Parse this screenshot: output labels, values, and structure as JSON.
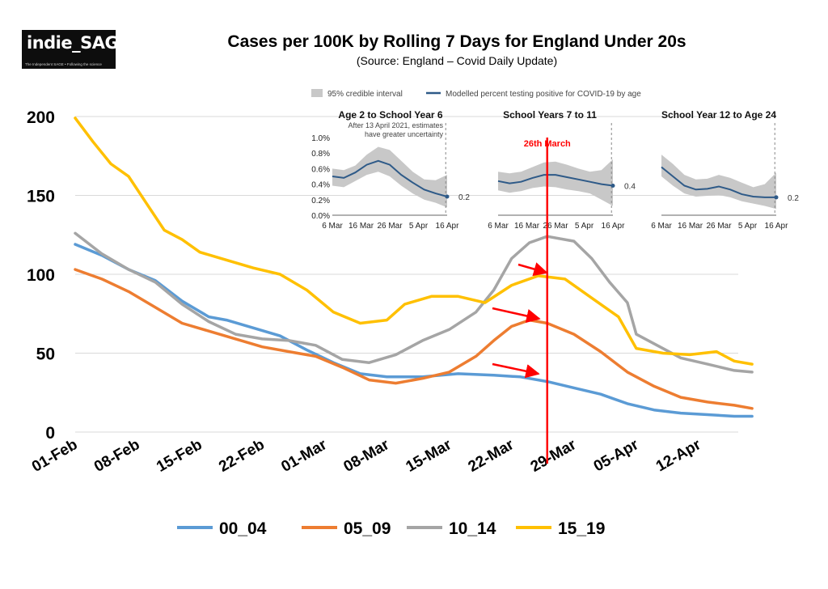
{
  "logo": {
    "text": "indie_SAGE",
    "tagline": "The Independent SAGE • Following the science"
  },
  "title": "Cases per 100K by Rolling 7 Days for England Under 20s",
  "subtitle": "(Source: England – Covid Daily Update)",
  "chart_data": [
    {
      "type": "line",
      "title": "Cases per 100K by Rolling 7 Days for England Under 20s",
      "xlabel": "",
      "ylabel": "",
      "x_tick_labels": [
        "01-Feb",
        "08-Feb",
        "15-Feb",
        "22-Feb",
        "01-Mar",
        "08-Mar",
        "15-Mar",
        "22-Mar",
        "29-Mar",
        "05-Apr",
        "12-Apr"
      ],
      "y_ticks": [
        0,
        50,
        100,
        150,
        200
      ],
      "ylim": [
        0,
        200
      ],
      "xlim": [
        "2021-02-01",
        "2021-04-18"
      ],
      "grid": "horizontal",
      "legend_position": "bottom",
      "series": [
        {
          "name": "00_04",
          "color": "#5b9bd5",
          "points": [
            [
              "2021-02-01",
              119
            ],
            [
              "2021-02-04",
              112
            ],
            [
              "2021-02-07",
              103
            ],
            [
              "2021-02-10",
              96
            ],
            [
              "2021-02-13",
              83
            ],
            [
              "2021-02-16",
              73
            ],
            [
              "2021-02-18",
              71
            ],
            [
              "2021-02-21",
              66
            ],
            [
              "2021-02-24",
              61
            ],
            [
              "2021-02-27",
              52
            ],
            [
              "2021-03-02",
              44
            ],
            [
              "2021-03-05",
              37
            ],
            [
              "2021-03-08",
              35
            ],
            [
              "2021-03-12",
              35
            ],
            [
              "2021-03-16",
              37
            ],
            [
              "2021-03-20",
              36
            ],
            [
              "2021-03-23",
              35
            ],
            [
              "2021-03-26",
              32
            ],
            [
              "2021-03-29",
              28
            ],
            [
              "2021-04-01",
              24
            ],
            [
              "2021-04-04",
              18
            ],
            [
              "2021-04-07",
              14
            ],
            [
              "2021-04-10",
              12
            ],
            [
              "2021-04-13",
              11
            ],
            [
              "2021-04-16",
              10
            ],
            [
              "2021-04-18",
              10
            ]
          ]
        },
        {
          "name": "05_09",
          "color": "#ed7d31",
          "points": [
            [
              "2021-02-01",
              103
            ],
            [
              "2021-02-04",
              97
            ],
            [
              "2021-02-07",
              89
            ],
            [
              "2021-02-10",
              79
            ],
            [
              "2021-02-13",
              69
            ],
            [
              "2021-02-16",
              64
            ],
            [
              "2021-02-19",
              59
            ],
            [
              "2021-02-22",
              54
            ],
            [
              "2021-02-25",
              51
            ],
            [
              "2021-02-28",
              48
            ],
            [
              "2021-03-03",
              41
            ],
            [
              "2021-03-06",
              33
            ],
            [
              "2021-03-09",
              31
            ],
            [
              "2021-03-12",
              34
            ],
            [
              "2021-03-15",
              38
            ],
            [
              "2021-03-18",
              48
            ],
            [
              "2021-03-20",
              58
            ],
            [
              "2021-03-22",
              67
            ],
            [
              "2021-03-24",
              71
            ],
            [
              "2021-03-26",
              69
            ],
            [
              "2021-03-29",
              62
            ],
            [
              "2021-04-01",
              51
            ],
            [
              "2021-04-04",
              38
            ],
            [
              "2021-04-07",
              29
            ],
            [
              "2021-04-10",
              22
            ],
            [
              "2021-04-13",
              19
            ],
            [
              "2021-04-16",
              17
            ],
            [
              "2021-04-18",
              15
            ]
          ]
        },
        {
          "name": "10_14",
          "color": "#a5a5a5",
          "points": [
            [
              "2021-02-01",
              126
            ],
            [
              "2021-02-04",
              113
            ],
            [
              "2021-02-07",
              103
            ],
            [
              "2021-02-10",
              95
            ],
            [
              "2021-02-13",
              81
            ],
            [
              "2021-02-16",
              70
            ],
            [
              "2021-02-19",
              62
            ],
            [
              "2021-02-22",
              59
            ],
            [
              "2021-02-25",
              58
            ],
            [
              "2021-02-28",
              55
            ],
            [
              "2021-03-03",
              46
            ],
            [
              "2021-03-06",
              44
            ],
            [
              "2021-03-09",
              49
            ],
            [
              "2021-03-12",
              58
            ],
            [
              "2021-03-15",
              65
            ],
            [
              "2021-03-18",
              76
            ],
            [
              "2021-03-20",
              90
            ],
            [
              "2021-03-22",
              110
            ],
            [
              "2021-03-24",
              120
            ],
            [
              "2021-03-26",
              124
            ],
            [
              "2021-03-29",
              121
            ],
            [
              "2021-03-31",
              110
            ],
            [
              "2021-04-02",
              95
            ],
            [
              "2021-04-04",
              82
            ],
            [
              "2021-04-05",
              62
            ],
            [
              "2021-04-07",
              56
            ],
            [
              "2021-04-10",
              47
            ],
            [
              "2021-04-13",
              43
            ],
            [
              "2021-04-16",
              39
            ],
            [
              "2021-04-18",
              38
            ]
          ]
        },
        {
          "name": "15_19",
          "color": "#ffc000",
          "points": [
            [
              "2021-02-01",
              199
            ],
            [
              "2021-02-03",
              184
            ],
            [
              "2021-02-05",
              170
            ],
            [
              "2021-02-07",
              162
            ],
            [
              "2021-02-09",
              145
            ],
            [
              "2021-02-11",
              128
            ],
            [
              "2021-02-13",
              122
            ],
            [
              "2021-02-15",
              114
            ],
            [
              "2021-02-18",
              109
            ],
            [
              "2021-02-21",
              104
            ],
            [
              "2021-02-24",
              100
            ],
            [
              "2021-02-27",
              90
            ],
            [
              "2021-03-02",
              76
            ],
            [
              "2021-03-05",
              69
            ],
            [
              "2021-03-08",
              71
            ],
            [
              "2021-03-10",
              81
            ],
            [
              "2021-03-13",
              86
            ],
            [
              "2021-03-16",
              86
            ],
            [
              "2021-03-19",
              82
            ],
            [
              "2021-03-22",
              93
            ],
            [
              "2021-03-25",
              99
            ],
            [
              "2021-03-28",
              97
            ],
            [
              "2021-03-31",
              85
            ],
            [
              "2021-04-03",
              73
            ],
            [
              "2021-04-05",
              53
            ],
            [
              "2021-04-08",
              50
            ],
            [
              "2021-04-11",
              49
            ],
            [
              "2021-04-14",
              51
            ],
            [
              "2021-04-16",
              45
            ],
            [
              "2021-04-18",
              43
            ]
          ]
        }
      ],
      "annotations": [
        {
          "label": "26th March",
          "x": "2021-03-26",
          "color": "#ff0000"
        }
      ]
    },
    {
      "type": "line",
      "legend": [
        {
          "label": "95% credible interval",
          "color": "#c8c8c8"
        },
        {
          "label": "Modelled percent testing positive for COVID-19 by age",
          "color": "#2e5a88"
        }
      ],
      "panels": [
        {
          "title": "Age 2 to School Year 6",
          "note_lines": [
            "After 13 April 2021, estimates",
            "have greater uncertainty"
          ],
          "y_tick_labels": [
            "0.0%",
            "0.2%",
            "0.4%",
            "0.6%",
            "0.8%",
            "1.0%"
          ],
          "x_tick_labels": [
            "6 Mar",
            "16 Mar",
            "26 Mar",
            "5 Apr",
            "16 Apr"
          ],
          "end_label": "0.2",
          "points": [
            [
              0,
              0.5
            ],
            [
              4,
              0.48
            ],
            [
              8,
              0.55
            ],
            [
              12,
              0.65
            ],
            [
              16,
              0.7
            ],
            [
              20,
              0.65
            ],
            [
              24,
              0.52
            ],
            [
              28,
              0.42
            ],
            [
              32,
              0.33
            ],
            [
              36,
              0.28
            ],
            [
              40,
              0.24
            ]
          ],
          "ci_upper": [
            0.6,
            0.58,
            0.64,
            0.78,
            0.88,
            0.84,
            0.7,
            0.56,
            0.46,
            0.45,
            0.52
          ],
          "ci_lower": [
            0.38,
            0.36,
            0.44,
            0.52,
            0.56,
            0.5,
            0.38,
            0.28,
            0.2,
            0.16,
            0.1
          ]
        },
        {
          "title": "School Years 7 to 11",
          "y_tick_labels": [],
          "x_tick_labels": [
            "6 Mar",
            "16 Mar",
            "26 Mar",
            "5 Apr",
            "16 Apr"
          ],
          "end_label": "0.4",
          "points": [
            [
              0,
              0.44
            ],
            [
              4,
              0.41
            ],
            [
              8,
              0.43
            ],
            [
              12,
              0.48
            ],
            [
              16,
              0.52
            ],
            [
              20,
              0.52
            ],
            [
              24,
              0.49
            ],
            [
              28,
              0.46
            ],
            [
              32,
              0.43
            ],
            [
              36,
              0.4
            ],
            [
              40,
              0.38
            ]
          ],
          "ci_upper": [
            0.56,
            0.54,
            0.56,
            0.62,
            0.68,
            0.69,
            0.65,
            0.6,
            0.56,
            0.58,
            0.72
          ],
          "ci_lower": [
            0.32,
            0.29,
            0.31,
            0.35,
            0.37,
            0.36,
            0.33,
            0.31,
            0.28,
            0.2,
            0.12
          ]
        },
        {
          "title": "School Year 12 to Age 24",
          "y_tick_labels": [],
          "x_tick_labels": [
            "6 Mar",
            "16 Mar",
            "26 Mar",
            "5 Apr",
            "16 Apr"
          ],
          "end_label": "0.2",
          "points": [
            [
              0,
              0.62
            ],
            [
              4,
              0.5
            ],
            [
              8,
              0.38
            ],
            [
              12,
              0.33
            ],
            [
              16,
              0.34
            ],
            [
              20,
              0.37
            ],
            [
              24,
              0.33
            ],
            [
              28,
              0.27
            ],
            [
              32,
              0.24
            ],
            [
              36,
              0.23
            ],
            [
              40,
              0.23
            ]
          ],
          "ci_upper": [
            0.78,
            0.66,
            0.52,
            0.46,
            0.47,
            0.52,
            0.48,
            0.42,
            0.36,
            0.4,
            0.55
          ],
          "ci_lower": [
            0.5,
            0.38,
            0.28,
            0.24,
            0.25,
            0.26,
            0.23,
            0.18,
            0.15,
            0.12,
            0.08
          ]
        }
      ]
    }
  ]
}
